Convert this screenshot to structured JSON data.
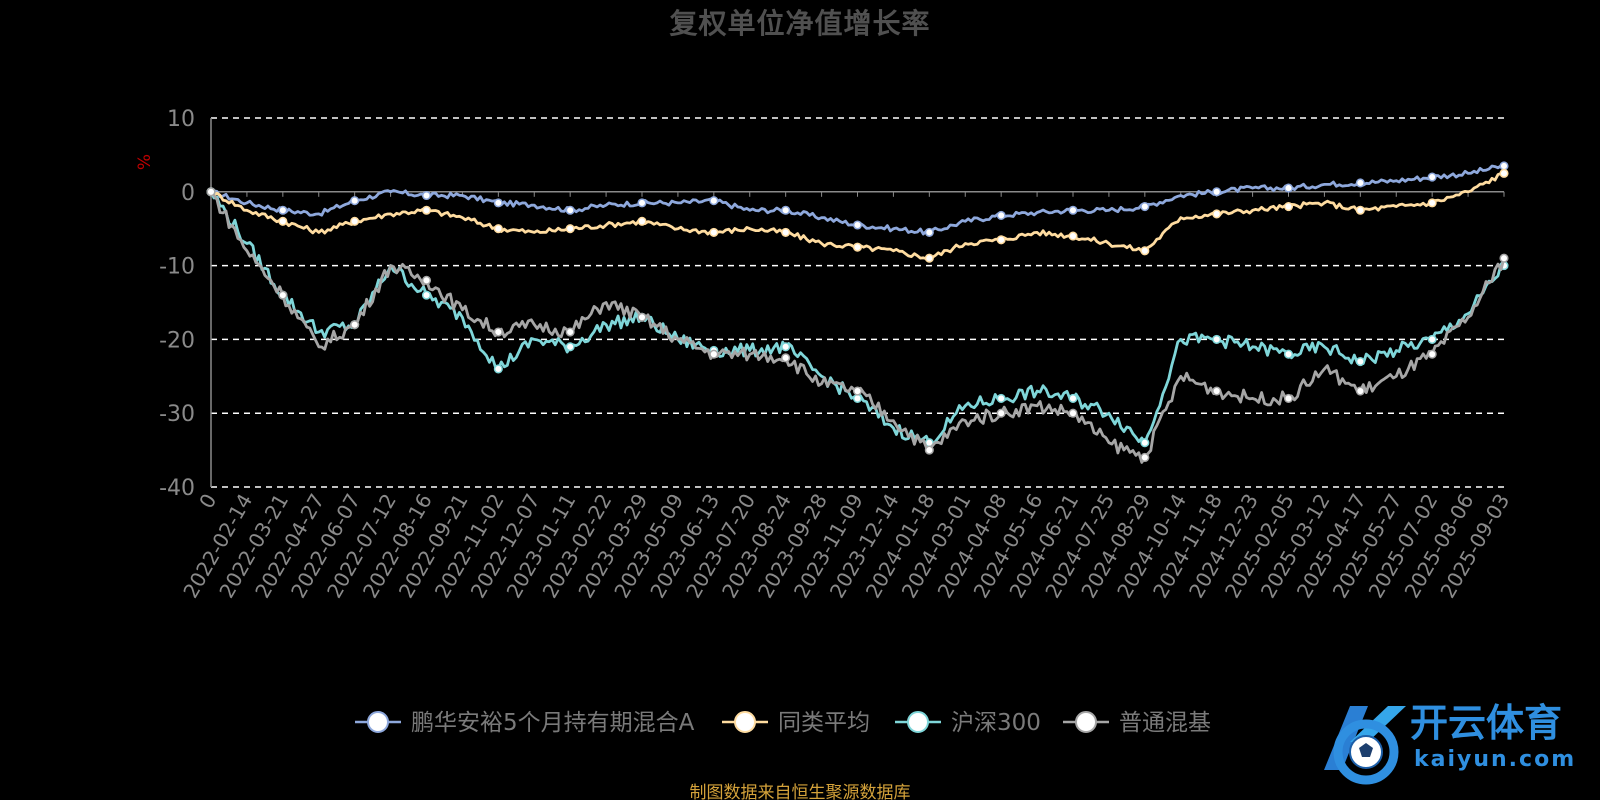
{
  "title": "复权单位净值增长率",
  "footer": "制图数据来自恒生聚源数据库",
  "watermark": {
    "brand_text": "开云体育",
    "url_text": "kaiyun.com"
  },
  "chart_data": {
    "type": "line",
    "title": "复权单位净值增长率",
    "ylabel": "%",
    "ylim": [
      -40,
      10
    ],
    "yticks": [
      10,
      0,
      -10,
      -20,
      -30,
      -40
    ],
    "grid": true,
    "legend_position": "bottom-center",
    "x_ticks": [
      "0",
      "2022-02-14",
      "2022-03-21",
      "2022-04-27",
      "2022-06-07",
      "2022-07-12",
      "2022-08-16",
      "2022-09-21",
      "2022-11-02",
      "2022-12-07",
      "2023-01-11",
      "2023-02-22",
      "2023-03-29",
      "2023-05-09",
      "2023-06-13",
      "2023-07-20",
      "2023-08-24",
      "2023-09-28",
      "2023-11-09",
      "2023-12-14",
      "2024-01-18",
      "2024-03-01",
      "2024-04-08",
      "2024-05-16",
      "2024-06-21",
      "2024-07-25",
      "2024-08-29",
      "2024-10-14",
      "2024-11-18",
      "2024-12-23",
      "2025-02-05",
      "2025-03-12",
      "2025-04-17",
      "2025-05-27",
      "2025-07-02",
      "2025-08-06",
      "2025-09-03"
    ],
    "series": [
      {
        "name": "鹏华安裕5个月持有期混合A",
        "color": "#8ea8dc",
        "values": [
          0,
          -1.5,
          -2.5,
          -3,
          -1.2,
          0,
          -0.5,
          -0.5,
          -1.5,
          -1.8,
          -2.5,
          -1.8,
          -1.5,
          -1.5,
          -1.2,
          -2.5,
          -2.5,
          -3.5,
          -4.5,
          -5,
          -5.5,
          -4,
          -3.2,
          -2.8,
          -2.5,
          -2.5,
          -2,
          -0.5,
          0,
          0.5,
          0.5,
          1,
          1.2,
          1.5,
          2,
          2.5,
          3.5
        ]
      },
      {
        "name": "同类平均",
        "color": "#ffdca0",
        "values": [
          0,
          -2.5,
          -4,
          -5.5,
          -4,
          -3,
          -2.5,
          -3.5,
          -5,
          -5.5,
          -5,
          -4.5,
          -4,
          -5,
          -5.5,
          -5,
          -5.5,
          -7,
          -7.5,
          -8,
          -9,
          -7,
          -6.5,
          -5.5,
          -6,
          -7,
          -8,
          -3.5,
          -3,
          -2.5,
          -2,
          -1.5,
          -2.5,
          -2,
          -1.5,
          0,
          2.5
        ]
      },
      {
        "name": "沪深300",
        "color": "#7fd6d9",
        "values": [
          0,
          -7,
          -14,
          -19,
          -18,
          -10,
          -14,
          -17,
          -24,
          -20,
          -21,
          -18,
          -17,
          -20,
          -21.5,
          -21.5,
          -21,
          -25,
          -28,
          -32,
          -34,
          -29,
          -28,
          -27,
          -28,
          -30,
          -34,
          -20,
          -20,
          -21,
          -22,
          -21,
          -23,
          -21.5,
          -20,
          -16.5,
          -10
        ]
      },
      {
        "name": "普通混基",
        "color": "#a6a6a6",
        "values": [
          0,
          -8,
          -14,
          -21,
          -18,
          -10,
          -12,
          -16,
          -19,
          -18,
          -19,
          -15,
          -17,
          -20,
          -22,
          -22,
          -22.5,
          -26,
          -27,
          -31,
          -35,
          -31,
          -30,
          -29,
          -30,
          -34,
          -36,
          -25,
          -27,
          -28,
          -28,
          -24,
          -27,
          -25,
          -22,
          -17,
          -9
        ]
      }
    ]
  }
}
